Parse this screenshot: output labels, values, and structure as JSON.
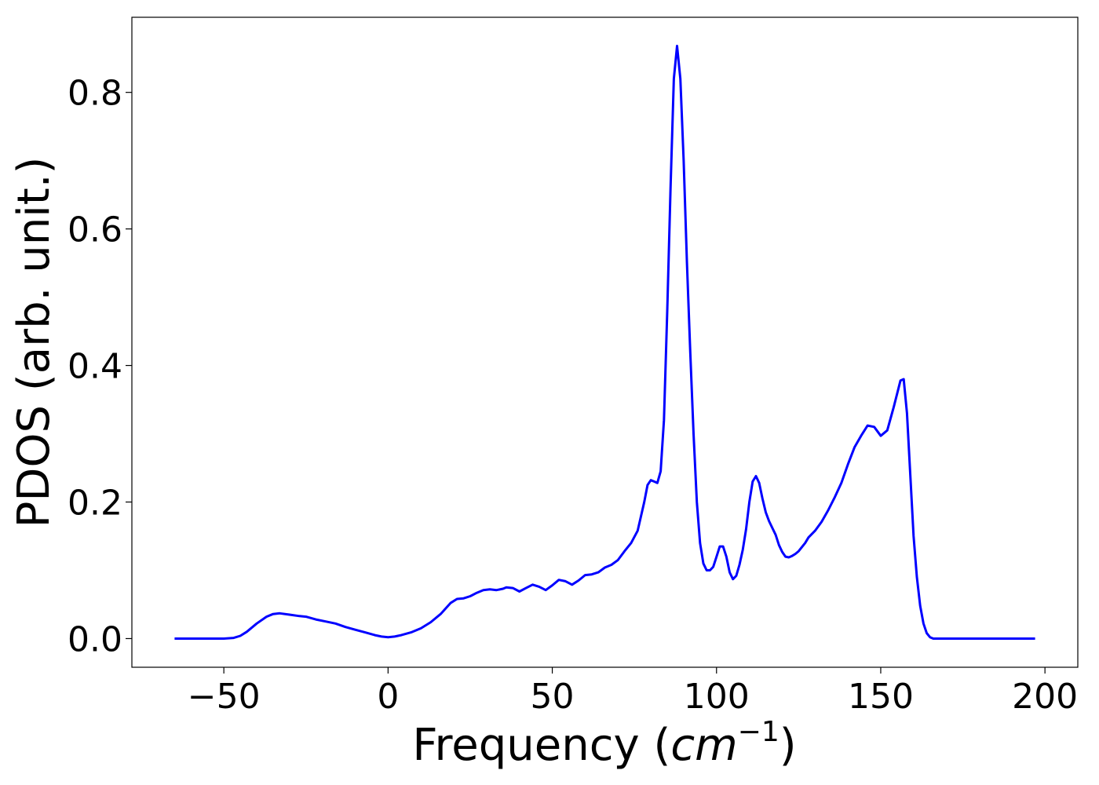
{
  "chart_data": {
    "type": "line",
    "title": "",
    "xlabel": "Frequency",
    "xlabel_unit": "cm",
    "xlabel_unit_exp": "−1",
    "ylabel": "PDOS (arb. unit.)",
    "xlim": [
      -78,
      210
    ],
    "ylim": [
      -0.042,
      0.91
    ],
    "xticks": [
      -50,
      0,
      50,
      100,
      150,
      200
    ],
    "xtick_labels": [
      "−50",
      "0",
      "50",
      "100",
      "150",
      "200"
    ],
    "yticks": [
      0.0,
      0.2,
      0.4,
      0.6,
      0.8
    ],
    "ytick_labels": [
      "0.0",
      "0.2",
      "0.4",
      "0.6",
      "0.8"
    ],
    "grid": false,
    "legend": "none",
    "line_color": "#0000ff",
    "series": [
      {
        "x": [
          -65,
          -60,
          -55,
          -50,
          -47,
          -45,
          -43,
          -40,
          -37,
          -35,
          -33,
          -30,
          -27,
          -25,
          -22,
          -19,
          -16,
          -13,
          -10,
          -7,
          -4,
          -2,
          0,
          2,
          4,
          7,
          10,
          13,
          16,
          19,
          21,
          23,
          25,
          27,
          29,
          31,
          33,
          35,
          36,
          38,
          40,
          42,
          44,
          46,
          48,
          50,
          52,
          54,
          56,
          58,
          60,
          62,
          64,
          66,
          68,
          70,
          72,
          74,
          76,
          78,
          79,
          80,
          81,
          82,
          83,
          84,
          85,
          86,
          87,
          88,
          89,
          90,
          91,
          92,
          93,
          94,
          95,
          96,
          97,
          98,
          99,
          100,
          101,
          102,
          103,
          104,
          105,
          106,
          107,
          108,
          109,
          110,
          111,
          112,
          113,
          114,
          115,
          116,
          117,
          118,
          119,
          120,
          121,
          122,
          123,
          124,
          125,
          126,
          127,
          128,
          130,
          132,
          134,
          136,
          138,
          140,
          142,
          144,
          146,
          148,
          150,
          152,
          154,
          156,
          157,
          158,
          159,
          160,
          161,
          162,
          163,
          164,
          165,
          166,
          167,
          168,
          169,
          170,
          171,
          172,
          173,
          174,
          175,
          176,
          177,
          178,
          179,
          180,
          182,
          185,
          190,
          197
        ],
        "y": [
          0.0,
          0.0,
          0.0,
          0.0,
          0.001,
          0.004,
          0.01,
          0.022,
          0.032,
          0.036,
          0.037,
          0.035,
          0.033,
          0.032,
          0.028,
          0.025,
          0.022,
          0.017,
          0.013,
          0.009,
          0.005,
          0.003,
          0.002,
          0.003,
          0.005,
          0.009,
          0.015,
          0.024,
          0.036,
          0.052,
          0.058,
          0.059,
          0.062,
          0.067,
          0.071,
          0.072,
          0.071,
          0.073,
          0.075,
          0.074,
          0.069,
          0.074,
          0.079,
          0.076,
          0.071,
          0.078,
          0.086,
          0.084,
          0.079,
          0.085,
          0.093,
          0.094,
          0.097,
          0.104,
          0.108,
          0.115,
          0.128,
          0.14,
          0.158,
          0.2,
          0.225,
          0.232,
          0.23,
          0.228,
          0.245,
          0.32,
          0.48,
          0.66,
          0.82,
          0.868,
          0.82,
          0.7,
          0.55,
          0.42,
          0.3,
          0.2,
          0.14,
          0.11,
          0.1,
          0.1,
          0.105,
          0.12,
          0.135,
          0.135,
          0.12,
          0.097,
          0.087,
          0.092,
          0.108,
          0.13,
          0.16,
          0.2,
          0.23,
          0.238,
          0.228,
          0.205,
          0.185,
          0.172,
          0.162,
          0.152,
          0.137,
          0.127,
          0.12,
          0.119,
          0.121,
          0.124,
          0.128,
          0.134,
          0.14,
          0.148,
          0.158,
          0.171,
          0.188,
          0.207,
          0.228,
          0.255,
          0.28,
          0.297,
          0.312,
          0.31,
          0.297,
          0.305,
          0.34,
          0.378,
          0.38,
          0.33,
          0.24,
          0.15,
          0.09,
          0.048,
          0.022,
          0.008,
          0.002,
          0.0,
          0.0,
          0.0,
          0.0,
          0.0,
          0.0,
          0.0,
          0.0,
          0.0,
          0.0,
          0.0,
          0.0,
          0.0,
          0.0,
          0.0,
          0.0,
          0.0,
          0.0,
          0.0
        ]
      }
    ]
  }
}
